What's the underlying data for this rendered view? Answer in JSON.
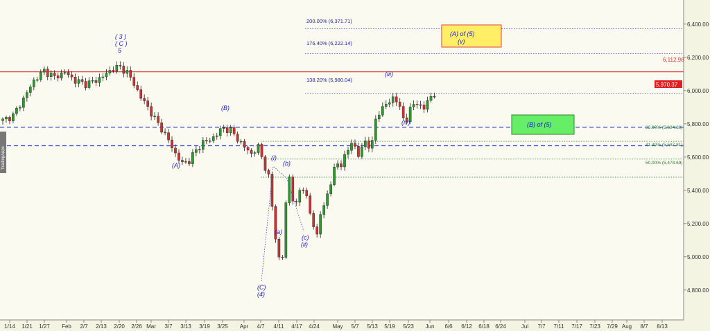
{
  "chart_data": {
    "type": "candlestick",
    "watermark": "TradingApps",
    "x_ticks": [
      "1/14",
      "1/21",
      "1/27",
      "Feb",
      "2/7",
      "2/13",
      "2/20",
      "2/26",
      "Mar",
      "3/7",
      "3/13",
      "3/19",
      "3/25",
      "Apr",
      "4/7",
      "4/11",
      "4/17",
      "4/24",
      "May",
      "5/7",
      "5/13",
      "5/19",
      "5/23",
      "Jun",
      "6/6",
      "6/12",
      "6/18",
      "6/24",
      "Jul",
      "7/7",
      "7/11",
      "7/17",
      "7/23",
      "7/29",
      "Aug",
      "8/7",
      "8/13"
    ],
    "y_ticks": [
      "4,800.00",
      "5,000.00",
      "5,200.00",
      "5,400.00",
      "5,600.00",
      "5,800.00",
      "6,000.00",
      "6,200.00",
      "6,400.00"
    ],
    "ylim": [
      4620,
      6545
    ],
    "last_price": "5,970.37",
    "resistance": {
      "label": "6,112.98",
      "value": 6112.98,
      "color": "#e03030"
    },
    "dashed_levels": [
      5780,
      5668
    ],
    "fib_extensions": [
      {
        "label": "200.00% (6,371.71)",
        "value": 6371.71
      },
      {
        "label": "176.40% (6,222.14)",
        "value": 6222.14
      },
      {
        "label": "138.20% (5,980.04)",
        "value": 5980.04
      }
    ],
    "retracements": [
      {
        "label": "33.00% (5,694.39)",
        "value": 5694.39
      },
      {
        "label": "41.40% (5,587.81)",
        "value": 5587.81
      },
      {
        "label": "50.00% (5,478.69)",
        "value": 5478.69
      }
    ],
    "wave_labels": [
      {
        "text": "( 3 )"
      },
      {
        "text": "( C )"
      },
      {
        "text": "5"
      },
      {
        "text": "(A)"
      },
      {
        "text": "(B)"
      },
      {
        "text": "(i)"
      },
      {
        "text": "(a)"
      },
      {
        "text": "(b)"
      },
      {
        "text": "(c)"
      },
      {
        "text": "(ii)"
      },
      {
        "text": "(iii)"
      },
      {
        "text": "(iv)"
      },
      {
        "text": "(C)"
      },
      {
        "text": "(4)"
      }
    ],
    "target_boxes": [
      {
        "line1": "(A) of (5)",
        "line2": "(v)",
        "color": "#ffee66"
      },
      {
        "line1": "(B) of (5)",
        "line2": "",
        "color": "#66ee66"
      }
    ],
    "anchors": [
      [
        0,
        5820
      ],
      [
        3,
        5850
      ],
      [
        6,
        5950
      ],
      [
        9,
        6060
      ],
      [
        12,
        6120
      ],
      [
        15,
        6080
      ],
      [
        18,
        6110
      ],
      [
        21,
        6060
      ],
      [
        24,
        6040
      ],
      [
        27,
        6060
      ],
      [
        30,
        6100
      ],
      [
        32,
        6135
      ],
      [
        34,
        6140
      ],
      [
        36,
        6110
      ],
      [
        38,
        6040
      ],
      [
        40,
        5960
      ],
      [
        42,
        5900
      ],
      [
        44,
        5830
      ],
      [
        46,
        5770
      ],
      [
        48,
        5700
      ],
      [
        50,
        5620
      ],
      [
        52,
        5560
      ],
      [
        54,
        5580
      ],
      [
        56,
        5640
      ],
      [
        58,
        5690
      ],
      [
        60,
        5700
      ],
      [
        62,
        5740
      ],
      [
        64,
        5775
      ],
      [
        66,
        5760
      ],
      [
        68,
        5710
      ],
      [
        70,
        5660
      ],
      [
        72,
        5620
      ],
      [
        74,
        5660
      ],
      [
        76,
        5540
      ],
      [
        77,
        5480
      ],
      [
        78,
        5300
      ],
      [
        79,
        5120
      ],
      [
        80,
        4990
      ],
      [
        81,
        5000
      ],
      [
        82,
        5320
      ],
      [
        83,
        5480
      ],
      [
        84,
        5350
      ],
      [
        85,
        5310
      ],
      [
        86,
        5400
      ],
      [
        87,
        5420
      ],
      [
        88,
        5350
      ],
      [
        89,
        5260
      ],
      [
        90,
        5190
      ],
      [
        91,
        5130
      ],
      [
        92,
        5260
      ],
      [
        93,
        5300
      ],
      [
        94,
        5380
      ],
      [
        95,
        5450
      ],
      [
        96,
        5520
      ],
      [
        97,
        5560
      ],
      [
        98,
        5560
      ],
      [
        99,
        5600
      ],
      [
        100,
        5640
      ],
      [
        101,
        5690
      ],
      [
        102,
        5660
      ],
      [
        103,
        5610
      ],
      [
        104,
        5650
      ],
      [
        105,
        5700
      ],
      [
        106,
        5670
      ],
      [
        107,
        5680
      ],
      [
        108,
        5830
      ],
      [
        109,
        5870
      ],
      [
        110,
        5890
      ],
      [
        111,
        5920
      ],
      [
        112,
        5930
      ],
      [
        113,
        5960
      ],
      [
        114,
        5940
      ],
      [
        115,
        5890
      ],
      [
        116,
        5840
      ],
      [
        117,
        5830
      ],
      [
        118,
        5880
      ],
      [
        119,
        5920
      ],
      [
        120,
        5930
      ],
      [
        121,
        5900
      ],
      [
        122,
        5890
      ],
      [
        123,
        5940
      ],
      [
        124,
        5965
      ],
      [
        125,
        5975
      ]
    ]
  }
}
